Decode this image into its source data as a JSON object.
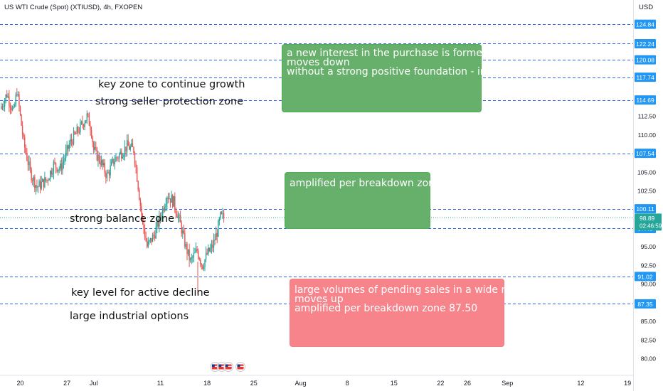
{
  "header": {
    "symbol_title": "US WTI Crude (Spot) (XTIUSD), 4h, FXOPEN",
    "currency": "USD"
  },
  "colors": {
    "up": "#26a69a",
    "down": "#ef5350",
    "level_line": "#2962ff",
    "green_box": "#4caf50",
    "red_box": "#f77c80",
    "price_tag": "#2196f3",
    "current_tag": "#26a69a"
  },
  "annotations": {
    "key_zone": "key zone to continue growth",
    "seller_zone": "strong seller protection zone",
    "balance_zone": "strong balance zone",
    "active_decline": "key level for active decline",
    "industrial_options": "large industrial options",
    "box_top": [
      "a new interest in the purchase is formed",
      "moves down",
      "without a strong positive foundation - irrelevant"
    ],
    "box_mid": [
      "amplified per breakdown zone 100"
    ],
    "box_bottom": [
      "large volumes of pending sales in a wide range",
      "moves up",
      "amplified per breakdown zone 87.50"
    ]
  },
  "chart_data": {
    "type": "candlestick",
    "title": "US WTI Crude (Spot) (XTIUSD), 4h, FXOPEN",
    "ylabel": "USD",
    "ylim": [
      78.0,
      125.5
    ],
    "y_ticks": [
      "80.00",
      "82.50",
      "85.00",
      "87.50",
      "90.00",
      "92.50",
      "95.00",
      "97.50",
      "100.00",
      "102.50",
      "105.00",
      "107.50",
      "110.00",
      "112.50",
      "115.00",
      "117.50",
      "120.00",
      "122.50",
      "125.00"
    ],
    "x_ticks": [
      {
        "label": "20",
        "day": -10
      },
      {
        "label": "27",
        "day": -3
      },
      {
        "label": "Jul",
        "day": 1
      },
      {
        "label": "11",
        "day": 11
      },
      {
        "label": "18",
        "day": 18
      },
      {
        "label": "25",
        "day": 25
      },
      {
        "label": "Aug",
        "day": 32
      },
      {
        "label": "8",
        "day": 39
      },
      {
        "label": "15",
        "day": 46
      },
      {
        "label": "22",
        "day": 53
      },
      {
        "label": "26",
        "day": 57
      },
      {
        "label": "Sep",
        "day": 63
      },
      {
        "label": "12",
        "day": 74
      },
      {
        "label": "19",
        "day": 81
      },
      {
        "label": "26",
        "day": 88
      }
    ],
    "horizontal_levels": [
      {
        "label": "124.84",
        "value": 124.84
      },
      {
        "label": "122.24",
        "value": 122.24
      },
      {
        "label": "120.08",
        "value": 120.08
      },
      {
        "label": "117.74",
        "value": 117.74
      },
      {
        "label": "114.69",
        "value": 114.69
      },
      {
        "label": "107.54",
        "value": 107.54
      },
      {
        "label": "100.11",
        "value": 100.11
      },
      {
        "label": "97.45",
        "value": 97.45
      },
      {
        "label": "91.02",
        "value": 91.02
      },
      {
        "label": "87.35",
        "value": 87.35
      }
    ],
    "current_price": {
      "price": "98.89",
      "countdown": "02:46:59",
      "value": 98.89
    },
    "price_path": [
      {
        "day": -13,
        "price": 113.5
      },
      {
        "day": -12,
        "price": 115.5
      },
      {
        "day": -11,
        "price": 113.0
      },
      {
        "day": -10.5,
        "price": 116.0
      },
      {
        "day": -9.5,
        "price": 109.0
      },
      {
        "day": -8.5,
        "price": 105.0
      },
      {
        "day": -7.5,
        "price": 103.0
      },
      {
        "day": -6,
        "price": 104.0
      },
      {
        "day": -5,
        "price": 106.0
      },
      {
        "day": -4,
        "price": 105.5
      },
      {
        "day": -2.5,
        "price": 109.0
      },
      {
        "day": -1,
        "price": 111.0
      },
      {
        "day": 0,
        "price": 112.5
      },
      {
        "day": 0.6,
        "price": 111.0
      },
      {
        "day": 1,
        "price": 108.0
      },
      {
        "day": 2,
        "price": 106.5
      },
      {
        "day": 3,
        "price": 104.5
      },
      {
        "day": 4,
        "price": 106.5
      },
      {
        "day": 5,
        "price": 107.5
      },
      {
        "day": 6,
        "price": 108.5
      },
      {
        "day": 7,
        "price": 108.0
      },
      {
        "day": 7.7,
        "price": 103.0
      },
      {
        "day": 8.2,
        "price": 99.0
      },
      {
        "day": 9,
        "price": 95.0
      },
      {
        "day": 10,
        "price": 96.5
      },
      {
        "day": 11,
        "price": 99.0
      },
      {
        "day": 12,
        "price": 102.0
      },
      {
        "day": 13,
        "price": 101.0
      },
      {
        "day": 14,
        "price": 98.0
      },
      {
        "day": 14.8,
        "price": 95.0
      },
      {
        "day": 15.5,
        "price": 93.0
      },
      {
        "day": 16.5,
        "price": 94.5
      },
      {
        "day": 17.3,
        "price": 92.5
      },
      {
        "day": 18,
        "price": 94.0
      },
      {
        "day": 18.8,
        "price": 95.0
      },
      {
        "day": 19.5,
        "price": 97.0
      },
      {
        "day": 20,
        "price": 99.0
      },
      {
        "day": 20.6,
        "price": 98.89
      }
    ],
    "event_markers": [
      {
        "label": "US",
        "day": 19.2
      },
      {
        "label": "US",
        "day": 20.2
      },
      {
        "label": "US",
        "day": 21.2
      },
      {
        "label": "US",
        "day": 23.0
      }
    ]
  }
}
